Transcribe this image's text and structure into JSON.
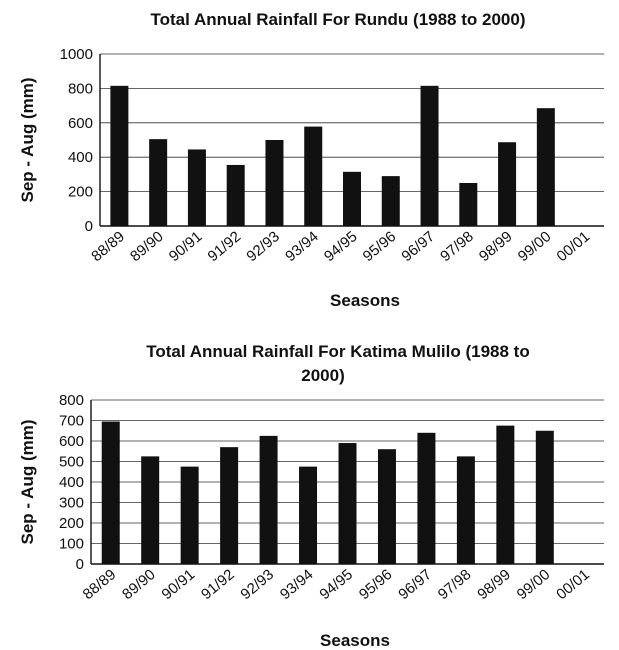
{
  "chart_data": [
    {
      "type": "bar",
      "title": "Total Annual Rainfall For Rundu (1988 to 2000)",
      "xlabel": "Seasons",
      "ylabel": "Sep - Aug (mm)",
      "ylim": [
        0,
        1000
      ],
      "yticks": [
        0,
        200,
        400,
        600,
        800,
        1000
      ],
      "grid": true,
      "categories": [
        "88/89",
        "89/90",
        "90/91",
        "91/92",
        "92/93",
        "93/94",
        "94/95",
        "95/96",
        "96/97",
        "97/98",
        "98/99",
        "99/00",
        "00/01"
      ],
      "values": [
        815,
        505,
        445,
        355,
        500,
        578,
        315,
        290,
        815,
        250,
        487,
        685,
        null
      ]
    },
    {
      "type": "bar",
      "title": "Total Annual Rainfall For Katima Mulilo (1988 to 2000)",
      "xlabel": "Seasons",
      "ylabel": "Sep - Aug (mm)",
      "ylim": [
        0,
        800
      ],
      "yticks": [
        0,
        100,
        200,
        300,
        400,
        500,
        600,
        700,
        800
      ],
      "grid": true,
      "categories": [
        "88/89",
        "89/90",
        "90/91",
        "91/92",
        "92/93",
        "93/94",
        "94/95",
        "95/96",
        "96/97",
        "97/98",
        "98/99",
        "99/00",
        "00/01"
      ],
      "values": [
        695,
        525,
        475,
        570,
        625,
        475,
        590,
        560,
        640,
        525,
        675,
        650,
        null
      ]
    }
  ]
}
